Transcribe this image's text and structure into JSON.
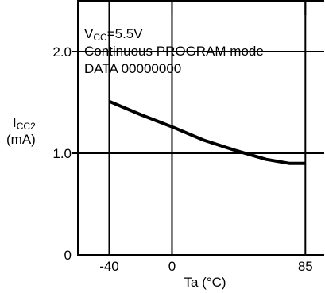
{
  "chart_data": {
    "type": "line",
    "ylabel_main": "I",
    "ylabel_sub": "CC2",
    "ylabel_unit": "(mA)",
    "xlabel": "Ta (°C)",
    "conditions": {
      "vcc_main": "V",
      "vcc_sub": "CC",
      "vcc_value": "=5.5V",
      "mode": "Continuous PROGRAM mode",
      "data": "DATA  00000000"
    },
    "xlim": [
      -60,
      97
    ],
    "ylim": [
      0,
      2.5
    ],
    "x_tick_labels": [
      {
        "value": -40,
        "label": "-40"
      },
      {
        "value": 0,
        "label": "0"
      },
      {
        "value": 85,
        "label": "85"
      }
    ],
    "y_tick_labels": [
      {
        "value": 2.0,
        "label": "2.0"
      },
      {
        "value": 1.0,
        "label": "1.0"
      },
      {
        "value": 0,
        "label": "0"
      }
    ],
    "gridlines_x": [
      -40,
      0,
      85
    ],
    "gridlines_y": [
      1.0,
      2.0
    ],
    "series": [
      {
        "color": "#000000",
        "points": [
          {
            "x": -40,
            "y": 1.51
          },
          {
            "x": -20,
            "y": 1.38
          },
          {
            "x": 0,
            "y": 1.26
          },
          {
            "x": 20,
            "y": 1.13
          },
          {
            "x": 40,
            "y": 1.03
          },
          {
            "x": 60,
            "y": 0.94
          },
          {
            "x": 75,
            "y": 0.9
          },
          {
            "x": 85,
            "y": 0.9
          }
        ]
      }
    ]
  }
}
